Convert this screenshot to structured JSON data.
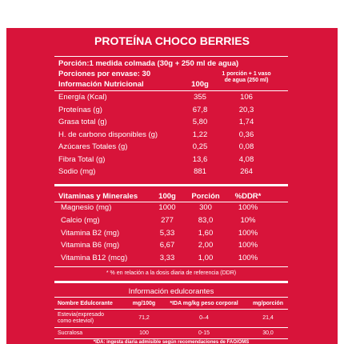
{
  "title": "PROTEÍNA CHOCO BERRIES",
  "portion": "Porción:1 medida colmada (30g + 250 ml de agua)",
  "servings": "Porciones por envase: 30",
  "nutrition": {
    "headers": [
      "Información Nutricional",
      "100g",
      "1 porción + 1 vaso de agua (250 ml)"
    ],
    "rows": [
      [
        "Energía (Kcal)",
        "355",
        "106"
      ],
      [
        "Proteínas (g)",
        "67,8",
        "20,3"
      ],
      [
        "Grasa total (g)",
        "5,80",
        "1,74"
      ],
      [
        "H. de carbono disponibles (g)",
        "1,22",
        "0,36"
      ],
      [
        "Azúcares Totales (g)",
        "0,25",
        "0,08"
      ],
      [
        "Fibra Total (g)",
        "13,6",
        "4,08"
      ],
      [
        "Sodio (mg)",
        "881",
        "264"
      ]
    ]
  },
  "vitamins": {
    "headers": [
      "Vitaminas y Minerales",
      "100g",
      "Porción",
      "%DDR*"
    ],
    "rows": [
      [
        "Magnesio (mg)",
        "1000",
        "300",
        "100%"
      ],
      [
        "Calcio (mg)",
        "277",
        "83,0",
        "10%"
      ],
      [
        "Vitamina B2 (mg)",
        "5,33",
        "1,60",
        "100%"
      ],
      [
        "Vitamina B6 (mg)",
        "6,67",
        "2,00",
        "100%"
      ],
      [
        "Vitamina B12 (mcg)",
        "3,33",
        "1,00",
        "100%"
      ]
    ]
  },
  "footnote": "* % en relación a la dosis diaria de referencia (DDR)",
  "sweeteners": {
    "title": "Información edulcorantes",
    "headers": [
      "Nombre Edulcorante",
      "mg/100g",
      "*IDA mg/kg peso corporal",
      "mg/porción"
    ],
    "rows": [
      [
        "Estevia(expresado como esteviol)",
        "71,2",
        "0–4",
        "21,4"
      ],
      [
        "Sucralosa",
        "100",
        "0-15",
        "30,0"
      ]
    ]
  },
  "sweetener_note": "*IDA: ingesta diaria admisible según recomendaciones de FAO/OMS"
}
